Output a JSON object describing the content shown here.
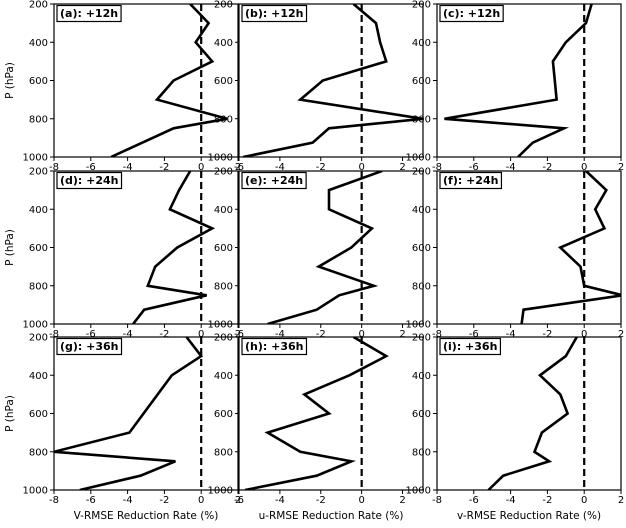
{
  "chart_data": [
    {
      "type": "line",
      "panel": "a",
      "label": "(a): +12h",
      "xlabel": "",
      "ylabel": "P (hPa)",
      "xlim": [
        -8,
        2
      ],
      "ylim": [
        1000,
        200
      ],
      "y_inverted": true,
      "xticks": [
        -8,
        -6,
        -4,
        -2,
        0,
        2
      ],
      "yticks": [
        200,
        400,
        600,
        800,
        1000
      ],
      "reference_line_x": 0,
      "series": [
        {
          "x": [
            -0.6,
            0.4,
            -0.3,
            0.6,
            -1.5,
            -2.4,
            1.4,
            -1.5,
            -4.9
          ],
          "y": [
            200,
            300,
            400,
            500,
            600,
            700,
            800,
            850,
            1000
          ]
        }
      ]
    },
    {
      "type": "line",
      "panel": "b",
      "label": "(b): +12h",
      "xlabel": "",
      "ylabel": "",
      "xlim": [
        -6,
        3
      ],
      "ylim": [
        1000,
        200
      ],
      "y_inverted": true,
      "xticks": [
        -6,
        -4,
        -2,
        0,
        2
      ],
      "yticks": [
        200,
        400,
        600,
        800,
        1000
      ],
      "reference_line_x": 0,
      "series": [
        {
          "x": [
            -0.4,
            0.7,
            0.9,
            1.2,
            -1.9,
            -3.0,
            3.0,
            -1.6,
            -2.4,
            -5.8
          ],
          "y": [
            200,
            300,
            400,
            500,
            600,
            700,
            800,
            850,
            925,
            1000
          ]
        }
      ]
    },
    {
      "type": "line",
      "panel": "c",
      "label": "(c): +12h",
      "xlabel": "",
      "ylabel": "",
      "xlim": [
        -8,
        2
      ],
      "ylim": [
        1000,
        200
      ],
      "y_inverted": true,
      "xticks": [
        -8,
        -6,
        -4,
        -2,
        0,
        2
      ],
      "yticks": [
        200,
        400,
        600,
        800,
        1000
      ],
      "reference_line_x": 0,
      "series": [
        {
          "x": [
            0.4,
            0.1,
            -1.0,
            -1.7,
            -1.6,
            -1.5,
            -7.6,
            -1.1,
            -2.8,
            -3.6
          ],
          "y": [
            200,
            300,
            400,
            500,
            600,
            700,
            800,
            850,
            925,
            1000
          ]
        }
      ]
    },
    {
      "type": "line",
      "panel": "d",
      "label": "(d): +24h",
      "xlabel": "",
      "ylabel": "P (hPa)",
      "xlim": [
        -8,
        2
      ],
      "ylim": [
        1000,
        200
      ],
      "y_inverted": true,
      "xticks": [
        -8,
        -6,
        -4,
        -2,
        0,
        2
      ],
      "yticks": [
        200,
        400,
        600,
        800,
        1000
      ],
      "reference_line_x": 0,
      "series": [
        {
          "x": [
            -0.6,
            -1.2,
            -1.7,
            0.6,
            -1.3,
            -2.5,
            -2.9,
            0.3,
            -3.1,
            -3.7
          ],
          "y": [
            200,
            300,
            400,
            500,
            600,
            700,
            800,
            850,
            925,
            1000
          ]
        }
      ]
    },
    {
      "type": "line",
      "panel": "e",
      "label": "(e): +24h",
      "xlabel": "",
      "ylabel": "",
      "xlim": [
        -6,
        3
      ],
      "ylim": [
        1000,
        200
      ],
      "y_inverted": true,
      "xticks": [
        -6,
        -4,
        -2,
        0,
        2
      ],
      "yticks": [
        200,
        400,
        600,
        800,
        1000
      ],
      "reference_line_x": 0,
      "series": [
        {
          "x": [
            1.0,
            -1.6,
            -1.6,
            0.5,
            -0.5,
            -2.1,
            0.6,
            -1.1,
            -2.2,
            -4.6
          ],
          "y": [
            200,
            300,
            400,
            500,
            600,
            700,
            800,
            850,
            925,
            1000
          ]
        }
      ]
    },
    {
      "type": "line",
      "panel": "f",
      "label": "(f): +24h",
      "xlabel": "",
      "ylabel": "",
      "xlim": [
        -8,
        2
      ],
      "ylim": [
        1000,
        200
      ],
      "y_inverted": true,
      "xticks": [
        -8,
        -6,
        -4,
        -2,
        0,
        2
      ],
      "yticks": [
        200,
        400,
        600,
        800,
        1000
      ],
      "reference_line_x": 0,
      "series": [
        {
          "x": [
            0.1,
            1.2,
            0.6,
            1.1,
            -1.3,
            -0.2,
            0.0,
            2.1,
            -3.3,
            -3.4
          ],
          "y": [
            200,
            300,
            400,
            500,
            600,
            700,
            800,
            850,
            925,
            1000
          ]
        }
      ]
    },
    {
      "type": "line",
      "panel": "g",
      "label": "(g): +36h",
      "xlabel": "V-RMSE Reduction Rate (%)",
      "ylabel": "P (hPa)",
      "xlim": [
        -8,
        2
      ],
      "ylim": [
        1000,
        200
      ],
      "y_inverted": true,
      "xticks": [
        -8,
        -6,
        -4,
        -2,
        0,
        2
      ],
      "yticks": [
        200,
        400,
        600,
        800,
        1000
      ],
      "reference_line_x": 0,
      "series": [
        {
          "x": [
            -0.8,
            0.0,
            -1.6,
            -3.9,
            -8.0,
            -1.4,
            -3.3,
            -6.6
          ],
          "y": [
            200,
            300,
            400,
            700,
            800,
            850,
            925,
            1000
          ]
        }
      ]
    },
    {
      "type": "line",
      "panel": "h",
      "label": "(h): +36h",
      "xlabel": "u-RMSE Reduction Rate (%)",
      "ylabel": "",
      "xlim": [
        -6,
        3
      ],
      "ylim": [
        1000,
        200
      ],
      "y_inverted": true,
      "xticks": [
        -6,
        -4,
        -2,
        0,
        2
      ],
      "yticks": [
        200,
        400,
        600,
        800,
        1000
      ],
      "reference_line_x": 0,
      "series": [
        {
          "x": [
            -0.4,
            1.2,
            -0.6,
            -2.8,
            -1.6,
            -4.6,
            -3.0,
            -0.5,
            -2.2,
            -5.7
          ],
          "y": [
            200,
            300,
            400,
            500,
            600,
            700,
            800,
            850,
            925,
            1000
          ]
        }
      ]
    },
    {
      "type": "line",
      "panel": "i",
      "label": "(i): +36h",
      "xlabel": "v-RMSE Reduction Rate (%)",
      "ylabel": "",
      "xlim": [
        -8,
        2
      ],
      "ylim": [
        1000,
        200
      ],
      "y_inverted": true,
      "xticks": [
        -8,
        -6,
        -4,
        -2,
        0,
        2
      ],
      "yticks": [
        200,
        400,
        600,
        800,
        1000
      ],
      "reference_line_x": 0,
      "series": [
        {
          "x": [
            -0.4,
            -1.0,
            -2.4,
            -1.3,
            -0.9,
            -2.3,
            -2.7,
            -1.9,
            -4.4,
            -5.2
          ],
          "y": [
            200,
            300,
            400,
            500,
            600,
            700,
            800,
            850,
            925,
            1000
          ]
        }
      ]
    }
  ]
}
